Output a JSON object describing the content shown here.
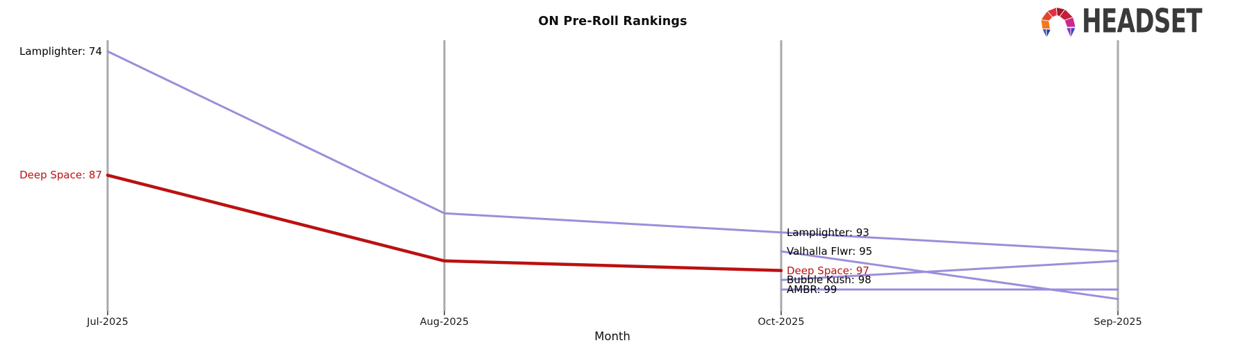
{
  "header": {
    "logo_text": "HEADSET"
  },
  "chart_data": {
    "type": "line",
    "title": "ON Pre-Roll Rankings",
    "xlabel": "Month",
    "ylabel": "",
    "x_categories": [
      "Jul-2025",
      "Aug-2025",
      "Oct-2025",
      "Sep-2025"
    ],
    "y_scale_note": "rank scale, lower number = higher position; rank 74 at top, ~rank 100 at bottom; no visible y ticks",
    "axis_color": "#a9a9a9",
    "series": [
      {
        "name": "Lamplighter",
        "color": "#9b8edb",
        "line_width": 3,
        "points": [
          {
            "month": "Jul-2025",
            "rank": 74
          },
          {
            "month": "Aug-2025",
            "rank": 91
          },
          {
            "month": "Oct-2025",
            "rank": 93
          },
          {
            "month": "Sep-2025",
            "rank": 95
          }
        ],
        "labels": [
          {
            "text": "Lamplighter: 74",
            "month": "Jul-2025",
            "rank": 74,
            "side": "left",
            "color": "#000000"
          },
          {
            "text": "Lamplighter: 93",
            "month": "Oct-2025",
            "rank": 93,
            "side": "right",
            "color": "#000000"
          }
        ]
      },
      {
        "name": "Deep Space",
        "color": "#bb1111",
        "line_width": 4.5,
        "points": [
          {
            "month": "Jul-2025",
            "rank": 87
          },
          {
            "month": "Aug-2025",
            "rank": 96
          },
          {
            "month": "Oct-2025",
            "rank": 97
          }
        ],
        "labels": [
          {
            "text": "Deep Space: 87",
            "month": "Jul-2025",
            "rank": 87,
            "side": "left",
            "color": "#bb1111"
          },
          {
            "text": "Deep Space: 97",
            "month": "Oct-2025",
            "rank": 97,
            "side": "right",
            "color": "#bb1111"
          }
        ]
      },
      {
        "name": "Valhalla Flwr",
        "color": "#9b8edb",
        "line_width": 3,
        "points": [
          {
            "month": "Oct-2025",
            "rank": 95
          },
          {
            "month": "Sep-2025",
            "rank": 100
          }
        ],
        "labels": [
          {
            "text": "Valhalla Flwr: 95",
            "month": "Oct-2025",
            "rank": 95,
            "side": "right",
            "color": "#000000"
          }
        ]
      },
      {
        "name": "Bubble Kush",
        "color": "#9b8edb",
        "line_width": 3,
        "points": [
          {
            "month": "Oct-2025",
            "rank": 98
          },
          {
            "month": "Sep-2025",
            "rank": 96
          }
        ],
        "labels": [
          {
            "text": "Bubble Kush: 98",
            "month": "Oct-2025",
            "rank": 98,
            "side": "right",
            "color": "#000000"
          }
        ]
      },
      {
        "name": "AMBR",
        "color": "#9b8edb",
        "line_width": 3,
        "points": [
          {
            "month": "Oct-2025",
            "rank": 99
          },
          {
            "month": "Sep-2025",
            "rank": 99
          }
        ],
        "labels": [
          {
            "text": "AMBR: 99",
            "month": "Oct-2025",
            "rank": 99,
            "side": "right",
            "color": "#000000"
          }
        ]
      }
    ]
  }
}
